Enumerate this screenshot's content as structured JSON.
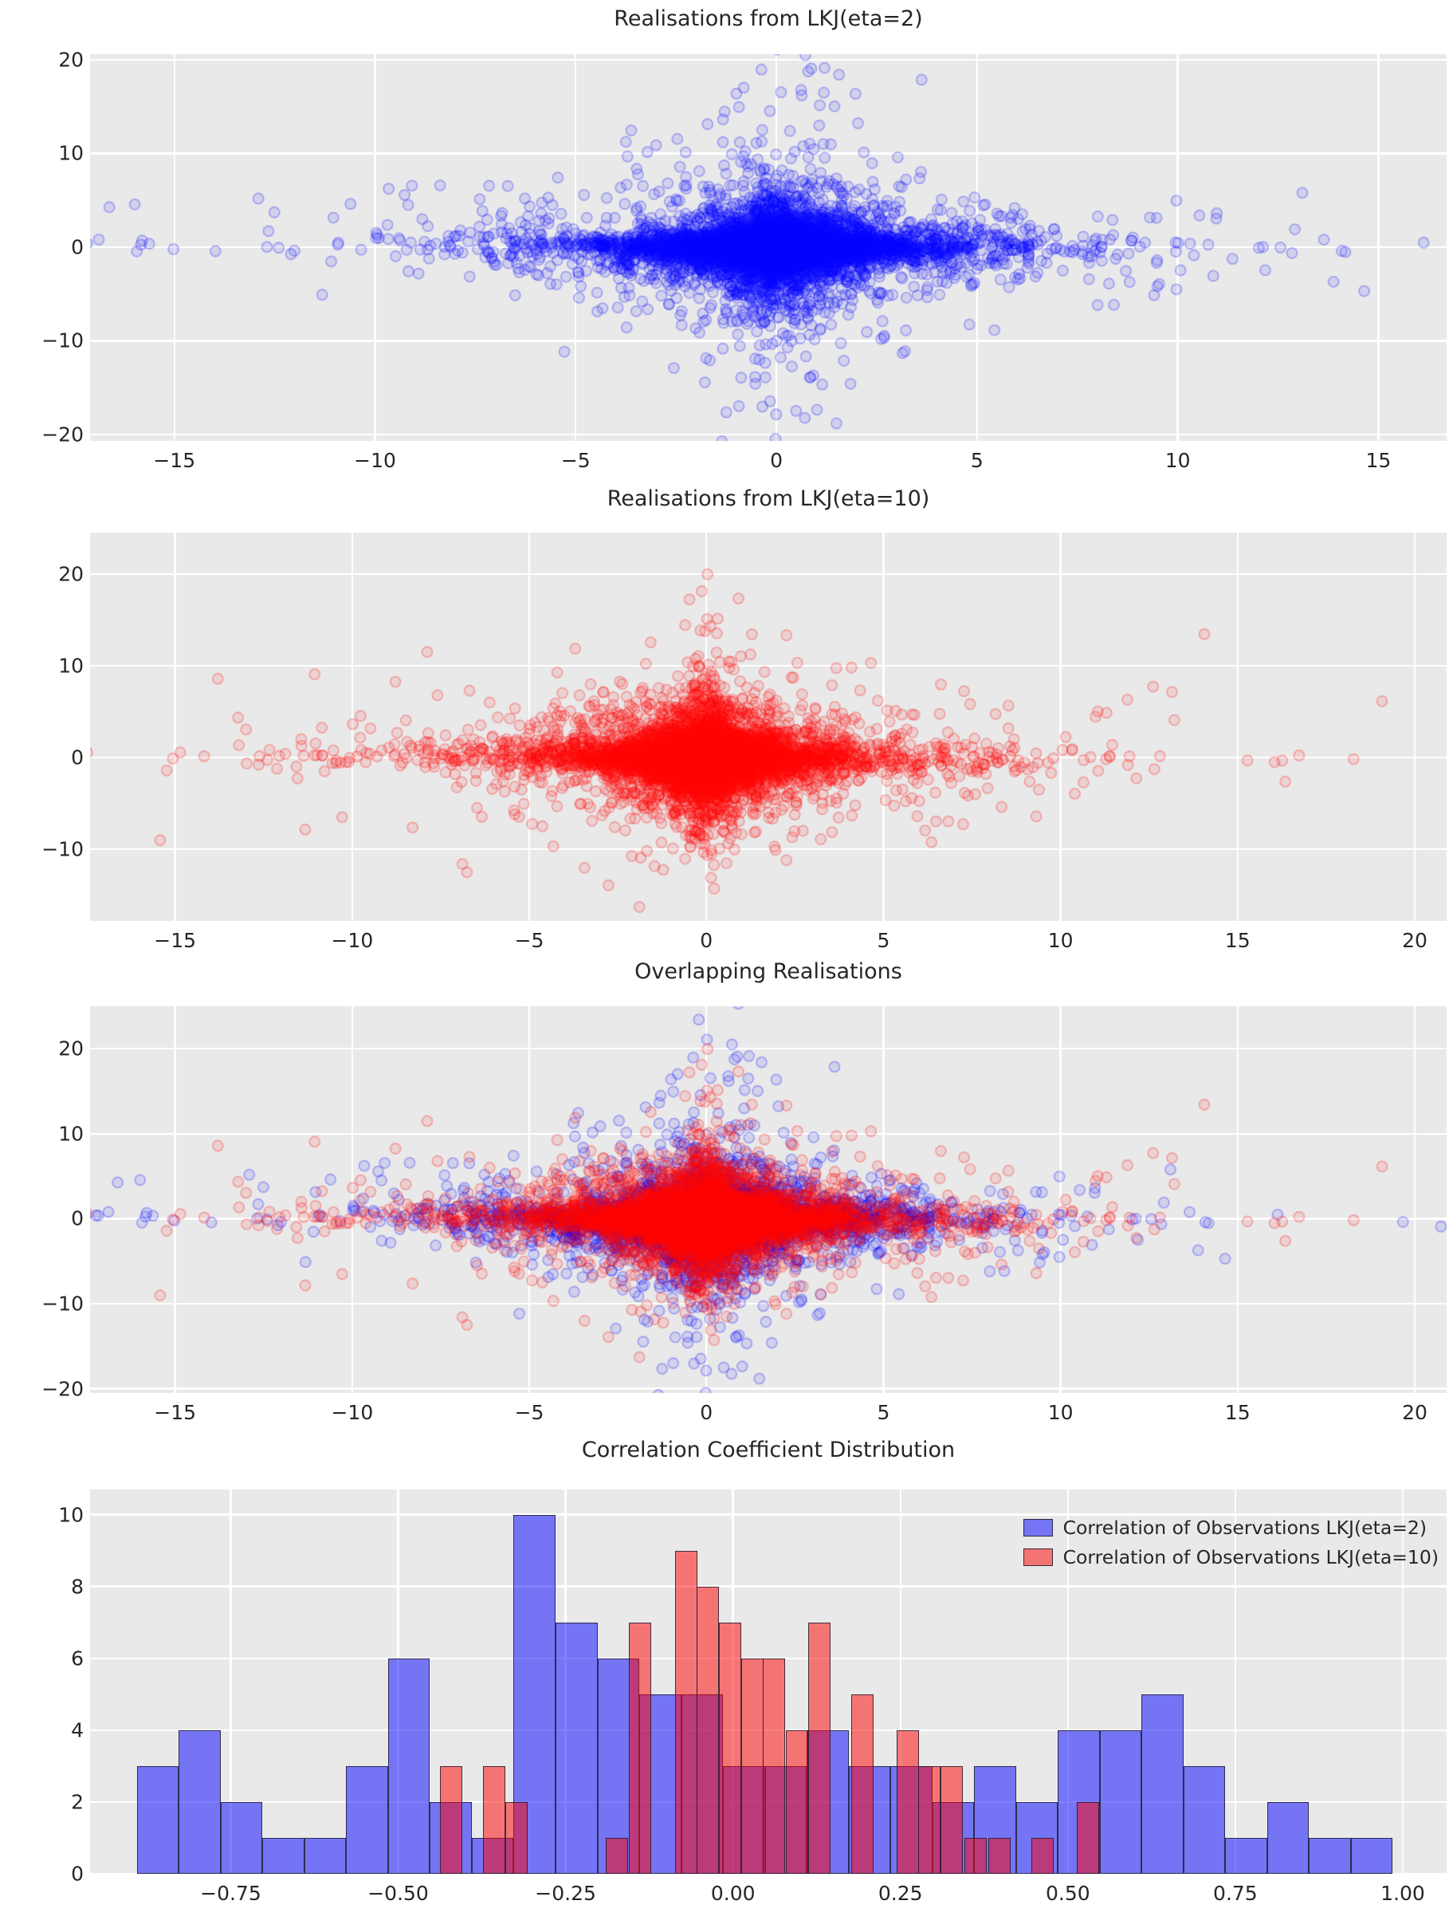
{
  "colors": {
    "background": "#ffffff",
    "axes_background": "#e9e9e9",
    "gridline": "#ffffff",
    "text": "#262626",
    "blue_series": "#0000ff",
    "red_series": "#ff0000",
    "blue_bar_fill": "rgba(0,0,255,0.5)",
    "red_bar_fill": "rgba(255,0,0,0.5)",
    "bar_edge": "rgba(32,32,48,0.85)"
  },
  "panels": [
    {
      "id": "panel-lkj2",
      "title": "Realisations from LKJ(eta=2)",
      "xlim": [
        -17.1,
        16.7
      ],
      "ylim": [
        -20.7,
        20.6
      ],
      "xticks": [
        -15,
        -10,
        -5,
        0,
        5,
        10,
        15
      ],
      "xtick_labels": [
        "−15",
        "−10",
        "−5",
        "0",
        "5",
        "10",
        "15"
      ],
      "yticks": [
        20,
        10,
        0,
        -10,
        -20
      ],
      "ytick_labels": [
        "20",
        "10",
        "0",
        "−10",
        "−20"
      ]
    },
    {
      "id": "panel-lkj10",
      "title": "Realisations from LKJ(eta=10)",
      "xlim": [
        -17.4,
        20.9
      ],
      "ylim": [
        -17.8,
        24.5
      ],
      "xticks": [
        -15,
        -10,
        -5,
        0,
        5,
        10,
        15,
        20
      ],
      "xtick_labels": [
        "−15",
        "−10",
        "−5",
        "0",
        "5",
        "10",
        "15",
        "20"
      ],
      "yticks": [
        20,
        10,
        0,
        -10
      ],
      "ytick_labels": [
        "20",
        "10",
        "0",
        "−10"
      ]
    },
    {
      "id": "panel-overlap",
      "title": "Overlapping Realisations",
      "xlim": [
        -17.4,
        20.9
      ],
      "ylim": [
        -20.5,
        25.0
      ],
      "xticks": [
        -15,
        -10,
        -5,
        0,
        5,
        10,
        15,
        20
      ],
      "xtick_labels": [
        "−15",
        "−10",
        "−5",
        "0",
        "5",
        "10",
        "15",
        "20"
      ],
      "yticks": [
        20,
        10,
        0,
        -10,
        -20
      ],
      "ytick_labels": [
        "20",
        "10",
        "0",
        "−10",
        "−20"
      ]
    },
    {
      "id": "panel-hist",
      "title": "Correlation Coefficient Distribution",
      "xlim": [
        -0.96,
        1.0655
      ],
      "ylim": [
        0,
        10.7
      ],
      "xticks": [
        -0.75,
        -0.5,
        -0.25,
        0,
        0.25,
        0.5,
        0.75,
        1.0
      ],
      "xtick_labels": [
        "−0.75",
        "−0.50",
        "−0.25",
        "0.00",
        "0.25",
        "0.50",
        "0.75",
        "1.00"
      ],
      "yticks": [
        0,
        2,
        4,
        6,
        8,
        10
      ],
      "ytick_labels": [
        "0",
        "2",
        "4",
        "6",
        "8",
        "10"
      ]
    }
  ],
  "legend": {
    "entries": [
      {
        "label": "Correlation of Observations LKJ(eta=2)",
        "color": "rgba(0,0,255,0.5)"
      },
      {
        "label": "Correlation of Observations LKJ(eta=10)",
        "color": "rgba(255,0,0,0.5)"
      }
    ]
  },
  "chart_data": [
    {
      "type": "scatter",
      "title": "Realisations from LKJ(eta=2)",
      "xlabel": "",
      "ylabel": "",
      "xlim": [
        -17.1,
        16.7
      ],
      "ylim": [
        -20.7,
        20.6
      ],
      "grid": true,
      "series": [
        {
          "name": "LKJ(eta=2) realisations",
          "color": "#0000ff",
          "marker": "circle",
          "marker_alpha": 0.15,
          "approx_n_points": 10000,
          "x_extent": [
            -16.0,
            15.4
          ],
          "y_extent": [
            -19.0,
            18.5
          ],
          "shape": "dense star-shaped cloud centred at (0,0); heavy horizontal band along y=0 across full x-range and broad vertical spread near x=0; correlations widely spread",
          "generator": {
            "seed": 42,
            "groups": 150,
            "points_per_group": 70,
            "rho_model": "triangular_pm1",
            "log_scale_sigma": 0.85,
            "scale_mult": 1.25
          }
        }
      ]
    },
    {
      "type": "scatter",
      "title": "Realisations from LKJ(eta=10)",
      "xlabel": "",
      "ylabel": "",
      "xlim": [
        -17.4,
        20.9
      ],
      "ylim": [
        -17.8,
        24.5
      ],
      "grid": true,
      "series": [
        {
          "name": "LKJ(eta=10) realisations",
          "color": "#ff0000",
          "marker": "circle",
          "marker_alpha": 0.15,
          "approx_n_points": 10000,
          "x_extent": [
            -15.7,
            19.8
          ],
          "y_extent": [
            -18.0,
            22.4
          ],
          "shape": "dense cross-shaped cloud centred at (0,0); tall narrow vertical spike at x≈0 reaching y≈22 and long thin horizontal band along y=0; correlations concentrated near 0",
          "generator": {
            "seed": 7,
            "groups": 150,
            "points_per_group": 70,
            "rho_model": "avg10_pm1",
            "log_scale_sigma": 0.85,
            "scale_mult": 1.25
          }
        }
      ]
    },
    {
      "type": "scatter",
      "title": "Overlapping Realisations",
      "xlabel": "",
      "ylabel": "",
      "xlim": [
        -17.4,
        20.9
      ],
      "ylim": [
        -20.5,
        25.0
      ],
      "grid": true,
      "series": [
        {
          "name": "LKJ(eta=2) realisations",
          "color": "#0000ff",
          "reuse_of": 0
        },
        {
          "name": "LKJ(eta=10) realisations",
          "color": "#ff0000",
          "reuse_of": 1
        }
      ]
    },
    {
      "type": "histogram",
      "title": "Correlation Coefficient Distribution",
      "xlabel": "",
      "ylabel": "",
      "xlim": [
        -0.96,
        1.0655
      ],
      "ylim": [
        0,
        10.7
      ],
      "grid": true,
      "legend_position": "upper right",
      "series": [
        {
          "name": "Correlation of Observations LKJ(eta=2)",
          "color": "#0000ff",
          "alpha": 0.5,
          "bin_start": -0.89,
          "bin_width": 0.0625,
          "heights": [
            3,
            4,
            2,
            1,
            1,
            3,
            6,
            2,
            1,
            10,
            7,
            6,
            5,
            5,
            3,
            3,
            4,
            3,
            3,
            2,
            3,
            2,
            4,
            4,
            5,
            3,
            1,
            2,
            1,
            1
          ],
          "total_count": 100
        },
        {
          "name": "Correlation of Observations LKJ(eta=10)",
          "color": "#ff0000",
          "alpha": 0.5,
          "bin_width": 0.0333,
          "bars": [
            {
              "x": -0.437,
              "h": 3
            },
            {
              "x": -0.373,
              "h": 3
            },
            {
              "x": -0.34,
              "h": 2
            },
            {
              "x": -0.19,
              "h": 1
            },
            {
              "x": -0.155,
              "h": 7
            },
            {
              "x": -0.087,
              "h": 9
            },
            {
              "x": -0.054,
              "h": 8
            },
            {
              "x": -0.021,
              "h": 7
            },
            {
              "x": 0.012,
              "h": 6
            },
            {
              "x": 0.045,
              "h": 6
            },
            {
              "x": 0.079,
              "h": 4
            },
            {
              "x": 0.112,
              "h": 7
            },
            {
              "x": 0.176,
              "h": 5
            },
            {
              "x": 0.244,
              "h": 4
            },
            {
              "x": 0.277,
              "h": 3
            },
            {
              "x": 0.31,
              "h": 3
            },
            {
              "x": 0.345,
              "h": 1
            },
            {
              "x": 0.381,
              "h": 1
            },
            {
              "x": 0.445,
              "h": 1
            },
            {
              "x": 0.513,
              "h": 2
            }
          ]
        }
      ]
    }
  ]
}
